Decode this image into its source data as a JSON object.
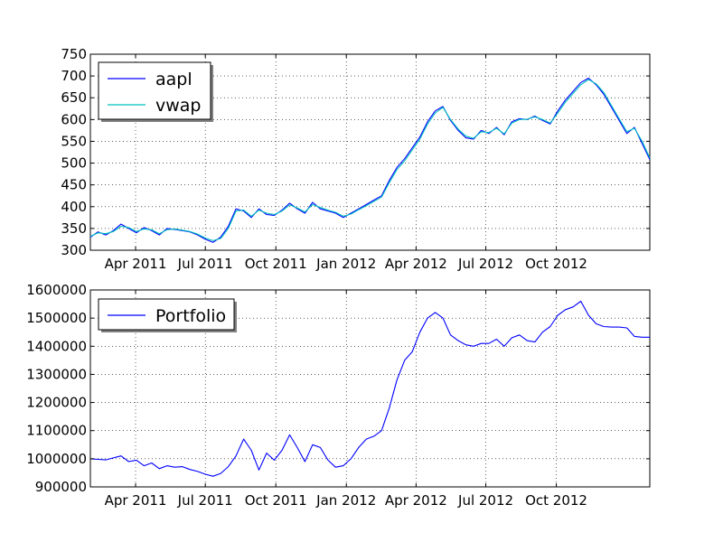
{
  "chart_data": [
    {
      "type": "line",
      "x_ticks": [
        "Apr 2011",
        "Jul 2011",
        "Oct 2011",
        "Jan 2012",
        "Apr 2012",
        "Jul 2012",
        "Oct 2012"
      ],
      "x_ticks_days": [
        59,
        150,
        242,
        334,
        425,
        516,
        608
      ],
      "xlim_days": [
        0,
        730
      ],
      "ylim": [
        300,
        750
      ],
      "y_ticks": [
        300,
        350,
        400,
        450,
        500,
        550,
        600,
        650,
        700,
        750
      ],
      "grid": true,
      "legend": "top-left",
      "series": [
        {
          "name": "aapl",
          "color": "#0000ff",
          "x": [
            0,
            10,
            20,
            30,
            40,
            50,
            60,
            70,
            80,
            90,
            100,
            110,
            120,
            130,
            140,
            150,
            160,
            170,
            180,
            190,
            200,
            210,
            220,
            230,
            240,
            250,
            260,
            270,
            280,
            290,
            300,
            310,
            320,
            330,
            340,
            350,
            360,
            370,
            380,
            390,
            400,
            410,
            420,
            430,
            440,
            450,
            460,
            470,
            480,
            490,
            500,
            510,
            520,
            530,
            540,
            550,
            560,
            570,
            580,
            590,
            600,
            610,
            620,
            630,
            640,
            650,
            660,
            670,
            680,
            690,
            700,
            710,
            720,
            730
          ],
          "y": [
            330,
            342,
            335,
            345,
            360,
            350,
            340,
            352,
            345,
            335,
            350,
            348,
            345,
            342,
            335,
            325,
            318,
            330,
            355,
            395,
            390,
            375,
            395,
            382,
            380,
            392,
            408,
            395,
            385,
            410,
            395,
            390,
            385,
            375,
            385,
            395,
            405,
            415,
            425,
            460,
            490,
            510,
            535,
            560,
            595,
            620,
            630,
            598,
            575,
            558,
            555,
            575,
            568,
            582,
            565,
            595,
            602,
            600,
            608,
            598,
            590,
            620,
            645,
            665,
            685,
            695,
            680,
            658,
            628,
            598,
            568,
            582,
            545,
            508
          ]
        },
        {
          "name": "vwap",
          "color": "#00bfbf",
          "x": [
            0,
            10,
            20,
            30,
            40,
            50,
            60,
            70,
            80,
            90,
            100,
            110,
            120,
            130,
            140,
            150,
            160,
            170,
            180,
            190,
            200,
            210,
            220,
            230,
            240,
            250,
            260,
            270,
            280,
            290,
            300,
            310,
            320,
            330,
            340,
            350,
            360,
            370,
            380,
            390,
            400,
            410,
            420,
            430,
            440,
            450,
            460,
            470,
            480,
            490,
            500,
            510,
            520,
            530,
            540,
            550,
            560,
            570,
            580,
            590,
            600,
            610,
            620,
            630,
            640,
            650,
            660,
            670,
            680,
            690,
            700,
            710,
            720,
            730
          ],
          "y": [
            332,
            340,
            338,
            343,
            355,
            352,
            343,
            349,
            347,
            338,
            347,
            349,
            346,
            343,
            337,
            328,
            322,
            327,
            350,
            390,
            392,
            378,
            392,
            385,
            382,
            390,
            404,
            397,
            388,
            405,
            398,
            392,
            387,
            378,
            383,
            393,
            402,
            412,
            422,
            455,
            485,
            505,
            530,
            555,
            590,
            615,
            628,
            600,
            578,
            562,
            557,
            572,
            570,
            580,
            567,
            592,
            600,
            601,
            606,
            600,
            592,
            615,
            640,
            660,
            680,
            692,
            682,
            662,
            632,
            602,
            572,
            580,
            550,
            512
          ]
        }
      ]
    },
    {
      "type": "line",
      "x_ticks": [
        "Apr 2011",
        "Jul 2011",
        "Oct 2011",
        "Jan 2012",
        "Apr 2012",
        "Jul 2012",
        "Oct 2012"
      ],
      "x_ticks_days": [
        59,
        150,
        242,
        334,
        425,
        516,
        608
      ],
      "xlim_days": [
        0,
        730
      ],
      "ylim": [
        900000,
        1600000
      ],
      "y_ticks": [
        900000,
        1000000,
        1100000,
        1200000,
        1300000,
        1400000,
        1500000,
        1600000
      ],
      "grid": true,
      "legend": "top-left",
      "series": [
        {
          "name": "Portfolio",
          "color": "#0000ff",
          "x": [
            0,
            10,
            20,
            30,
            40,
            50,
            60,
            70,
            80,
            90,
            100,
            110,
            120,
            130,
            140,
            150,
            160,
            170,
            180,
            190,
            200,
            210,
            220,
            230,
            240,
            250,
            260,
            270,
            280,
            290,
            300,
            310,
            320,
            330,
            340,
            350,
            360,
            370,
            380,
            390,
            400,
            410,
            420,
            430,
            440,
            450,
            460,
            470,
            480,
            490,
            500,
            510,
            520,
            530,
            540,
            550,
            560,
            570,
            580,
            590,
            600,
            610,
            620,
            630,
            640,
            650,
            660,
            670,
            680,
            690,
            700,
            710,
            720,
            730
          ],
          "y": [
            1000000,
            998000,
            996000,
            1003000,
            1010000,
            990000,
            995000,
            975000,
            985000,
            965000,
            975000,
            970000,
            972000,
            962000,
            955000,
            945000,
            938000,
            948000,
            972000,
            1010000,
            1070000,
            1030000,
            960000,
            1020000,
            995000,
            1030000,
            1085000,
            1040000,
            990000,
            1050000,
            1040000,
            995000,
            970000,
            975000,
            1000000,
            1040000,
            1070000,
            1080000,
            1100000,
            1180000,
            1280000,
            1350000,
            1380000,
            1450000,
            1500000,
            1520000,
            1500000,
            1440000,
            1420000,
            1405000,
            1400000,
            1410000,
            1410000,
            1425000,
            1400000,
            1430000,
            1440000,
            1420000,
            1415000,
            1450000,
            1470000,
            1510000,
            1530000,
            1540000,
            1560000,
            1510000,
            1480000,
            1470000,
            1468000,
            1468000,
            1465000,
            1435000,
            1432000,
            1432000
          ]
        }
      ]
    }
  ]
}
